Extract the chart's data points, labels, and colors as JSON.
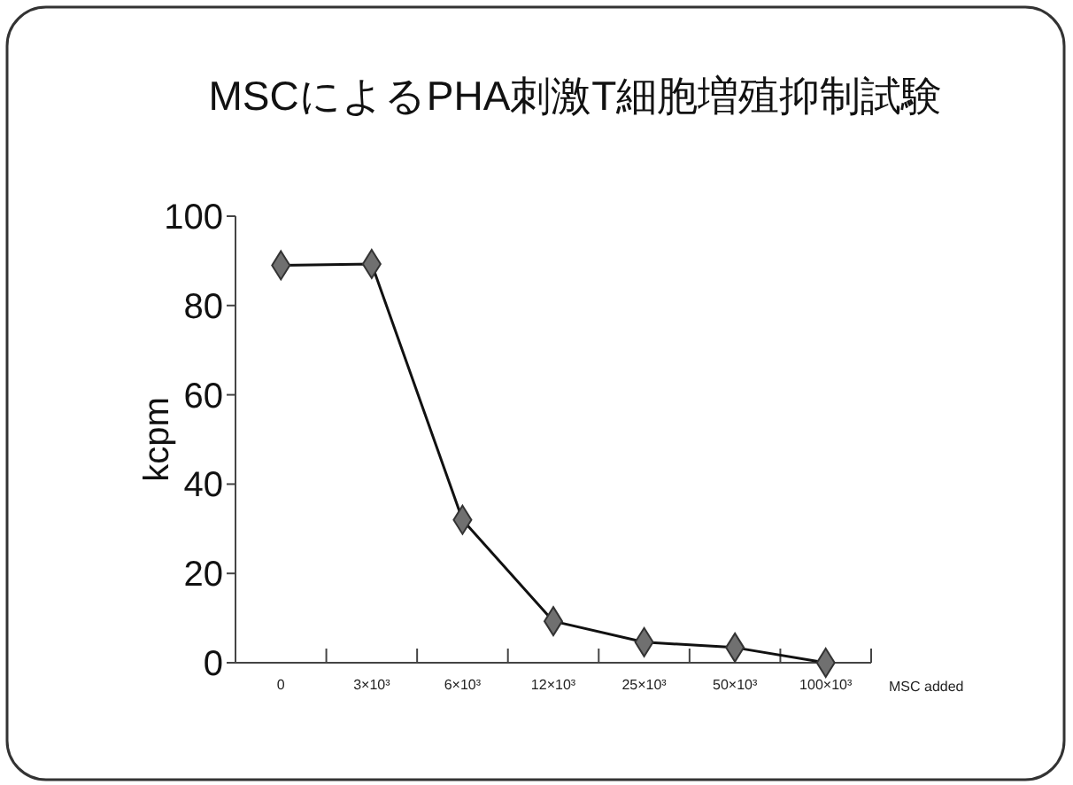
{
  "chart_data": {
    "type": "line",
    "title": "MSCによるPHA刺激T細胞増殖抑制試験",
    "xlabel": "MSC added",
    "ylabel": "kcpm",
    "categories": [
      "0",
      "3×10³",
      "6×10³",
      "12×10³",
      "25×10³",
      "50×10³",
      "100×10³"
    ],
    "series": [
      {
        "color": "#707070",
        "values": [
          89,
          89.3,
          32,
          9.3,
          4.6,
          3.4,
          0
        ]
      }
    ],
    "ylim": [
      0,
      100
    ],
    "yticks": [
      0,
      20,
      40,
      60,
      80,
      100
    ],
    "marker": "diamond",
    "line_style": "solid"
  }
}
